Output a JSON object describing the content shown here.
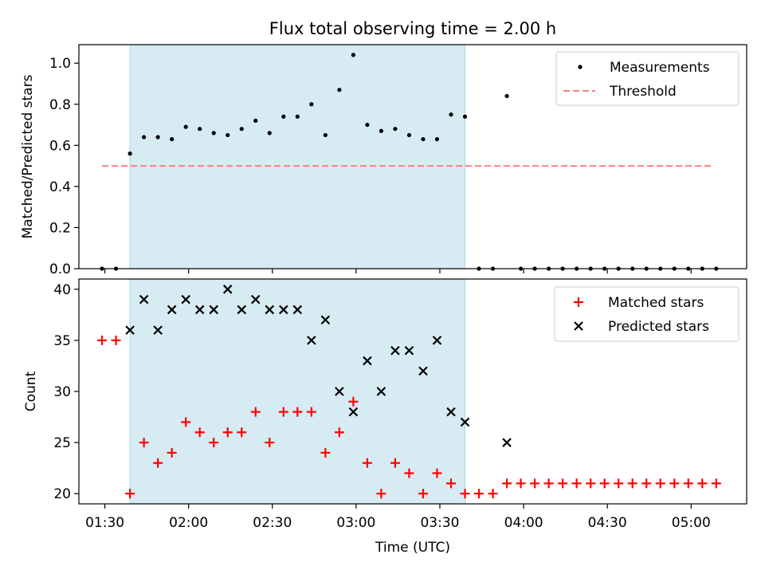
{
  "figure": {
    "title": "Flux total observing time = 2.00 h",
    "xlabel": "Time (UTC)",
    "x_ticks": [
      "01:30",
      "02:00",
      "02:30",
      "03:00",
      "03:30",
      "04:00",
      "04:30",
      "05:00"
    ]
  },
  "chart_data": [
    {
      "type": "scatter",
      "panel": "top",
      "ylabel": "Matched/Predicted stars",
      "ylim": [
        0.0,
        1.09
      ],
      "y_ticks": [
        "0.0",
        "0.2",
        "0.4",
        "0.6",
        "0.8",
        "1.0"
      ],
      "legend_position": "top-right",
      "shaded_interval": {
        "start": "01:39",
        "end": "03:39",
        "color": "#add8e6"
      },
      "threshold": {
        "name": "Threshold",
        "value": 0.5,
        "start": "01:29",
        "end": "05:08",
        "color": "#ff7f7f"
      },
      "series": [
        {
          "name": "Measurements",
          "color": "#000000",
          "points": [
            [
              "01:29",
              0.0
            ],
            [
              "01:34",
              0.0
            ],
            [
              "01:39",
              0.56
            ],
            [
              "01:44",
              0.64
            ],
            [
              "01:49",
              0.64
            ],
            [
              "01:54",
              0.63
            ],
            [
              "01:59",
              0.69
            ],
            [
              "02:04",
              0.68
            ],
            [
              "02:09",
              0.66
            ],
            [
              "02:14",
              0.65
            ],
            [
              "02:19",
              0.68
            ],
            [
              "02:24",
              0.72
            ],
            [
              "02:29",
              0.66
            ],
            [
              "02:34",
              0.74
            ],
            [
              "02:39",
              0.74
            ],
            [
              "02:44",
              0.8
            ],
            [
              "02:49",
              0.65
            ],
            [
              "02:54",
              0.87
            ],
            [
              "02:59",
              1.04
            ],
            [
              "03:04",
              0.7
            ],
            [
              "03:09",
              0.67
            ],
            [
              "03:14",
              0.68
            ],
            [
              "03:19",
              0.65
            ],
            [
              "03:24",
              0.63
            ],
            [
              "03:29",
              0.63
            ],
            [
              "03:34",
              0.75
            ],
            [
              "03:39",
              0.74
            ],
            [
              "03:44",
              0.0
            ],
            [
              "03:49",
              0.0
            ],
            [
              "03:54",
              0.84
            ],
            [
              "03:59",
              0.0
            ],
            [
              "04:04",
              0.0
            ],
            [
              "04:09",
              0.0
            ],
            [
              "04:14",
              0.0
            ],
            [
              "04:19",
              0.0
            ],
            [
              "04:24",
              0.0
            ],
            [
              "04:29",
              0.0
            ],
            [
              "04:34",
              0.0
            ],
            [
              "04:39",
              0.0
            ],
            [
              "04:44",
              0.0
            ],
            [
              "04:49",
              0.0
            ],
            [
              "04:54",
              0.0
            ],
            [
              "04:59",
              0.0
            ],
            [
              "05:04",
              0.0
            ],
            [
              "05:09",
              0.0
            ]
          ]
        }
      ]
    },
    {
      "type": "scatter",
      "panel": "bottom",
      "ylabel": "Count",
      "ylim": [
        19.0,
        41.0
      ],
      "y_ticks": [
        "20",
        "25",
        "30",
        "35",
        "40"
      ],
      "legend_position": "top-right",
      "shaded_interval": {
        "start": "01:39",
        "end": "03:39",
        "color": "#add8e6"
      },
      "series": [
        {
          "name": "Matched stars",
          "marker": "plus",
          "color": "#ff0000",
          "points": [
            [
              "01:29",
              35
            ],
            [
              "01:34",
              35
            ],
            [
              "01:39",
              20
            ],
            [
              "01:44",
              25
            ],
            [
              "01:49",
              23
            ],
            [
              "01:54",
              24
            ],
            [
              "01:59",
              27
            ],
            [
              "02:04",
              26
            ],
            [
              "02:09",
              25
            ],
            [
              "02:14",
              26
            ],
            [
              "02:19",
              26
            ],
            [
              "02:24",
              28
            ],
            [
              "02:29",
              25
            ],
            [
              "02:34",
              28
            ],
            [
              "02:39",
              28
            ],
            [
              "02:44",
              28
            ],
            [
              "02:49",
              24
            ],
            [
              "02:54",
              26
            ],
            [
              "02:59",
              29
            ],
            [
              "03:04",
              23
            ],
            [
              "03:09",
              20
            ],
            [
              "03:14",
              23
            ],
            [
              "03:19",
              22
            ],
            [
              "03:24",
              20
            ],
            [
              "03:29",
              22
            ],
            [
              "03:34",
              21
            ],
            [
              "03:39",
              20
            ],
            [
              "03:44",
              20
            ],
            [
              "03:49",
              20
            ],
            [
              "03:54",
              21
            ],
            [
              "03:59",
              21
            ],
            [
              "04:04",
              21
            ],
            [
              "04:09",
              21
            ],
            [
              "04:14",
              21
            ],
            [
              "04:19",
              21
            ],
            [
              "04:24",
              21
            ],
            [
              "04:29",
              21
            ],
            [
              "04:34",
              21
            ],
            [
              "04:39",
              21
            ],
            [
              "04:44",
              21
            ],
            [
              "04:49",
              21
            ],
            [
              "04:54",
              21
            ],
            [
              "04:59",
              21
            ],
            [
              "05:04",
              21
            ],
            [
              "05:09",
              21
            ]
          ]
        },
        {
          "name": "Predicted stars",
          "marker": "x",
          "color": "#000000",
          "points": [
            [
              "01:39",
              36
            ],
            [
              "01:44",
              39
            ],
            [
              "01:49",
              36
            ],
            [
              "01:54",
              38
            ],
            [
              "01:59",
              39
            ],
            [
              "02:04",
              38
            ],
            [
              "02:09",
              38
            ],
            [
              "02:14",
              40
            ],
            [
              "02:19",
              38
            ],
            [
              "02:24",
              39
            ],
            [
              "02:29",
              38
            ],
            [
              "02:34",
              38
            ],
            [
              "02:39",
              38
            ],
            [
              "02:44",
              35
            ],
            [
              "02:49",
              37
            ],
            [
              "02:54",
              30
            ],
            [
              "02:59",
              28
            ],
            [
              "03:04",
              33
            ],
            [
              "03:09",
              30
            ],
            [
              "03:14",
              34
            ],
            [
              "03:19",
              34
            ],
            [
              "03:24",
              32
            ],
            [
              "03:29",
              35
            ],
            [
              "03:34",
              28
            ],
            [
              "03:39",
              27
            ],
            [
              "03:54",
              25
            ]
          ]
        }
      ]
    }
  ]
}
